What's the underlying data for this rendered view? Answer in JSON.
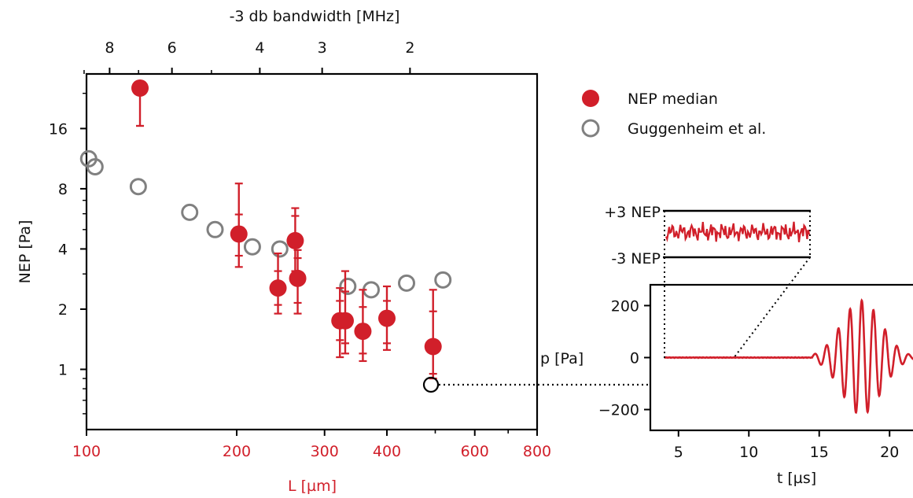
{
  "chart_data": [
    {
      "type": "scatter",
      "xlabel": "L [µm]",
      "ylabel": "NEP [Pa]",
      "top_xlabel": "-3 db bandwidth [MHz]",
      "x_scale": "log",
      "y_scale": "log",
      "xlim": [
        100,
        800
      ],
      "ylim": [
        0.5,
        30
      ],
      "x_ticks": [
        "100",
        "200",
        "300",
        "400",
        "600",
        "800"
      ],
      "y_ticks": [
        "1",
        "2",
        "4",
        "8",
        "16"
      ],
      "top_ticks": [
        "8",
        "6",
        "4",
        "3",
        "2"
      ],
      "legend_position": "right",
      "series": [
        {
          "name": "NEP median",
          "color": "#d11f2a",
          "marker": "filled-circle",
          "points": [
            {
              "x": 128,
              "y": 25.5,
              "y_outer": [
                16.5,
                25.5
              ],
              "y_inner": [
                16.5,
                25.5
              ]
            },
            {
              "x": 202,
              "y": 4.75,
              "y_outer": [
                3.25,
                8.5
              ],
              "y_inner": [
                3.7,
                5.95
              ]
            },
            {
              "x": 242,
              "y": 2.55,
              "y_outer": [
                1.9,
                3.8
              ],
              "y_inner": [
                2.1,
                3.1
              ]
            },
            {
              "x": 262,
              "y": 4.4,
              "y_outer": [
                2.85,
                6.4
              ],
              "y_inner": [
                3.1,
                5.85
              ]
            },
            {
              "x": 265,
              "y": 2.85,
              "y_outer": [
                1.9,
                3.95
              ],
              "y_inner": [
                2.15,
                3.6
              ]
            },
            {
              "x": 322,
              "y": 1.75,
              "y_outer": [
                1.15,
                2.55
              ],
              "y_inner": [
                1.4,
                2.2
              ]
            },
            {
              "x": 330,
              "y": 1.75,
              "y_outer": [
                1.2,
                3.1
              ],
              "y_inner": [
                1.35,
                2.45
              ]
            },
            {
              "x": 358,
              "y": 1.55,
              "y_outer": [
                1.1,
                2.5
              ],
              "y_inner": [
                1.2,
                2.05
              ]
            },
            {
              "x": 400,
              "y": 1.8,
              "y_outer": [
                1.25,
                2.6
              ],
              "y_inner": [
                1.35,
                2.2
              ]
            },
            {
              "x": 495,
              "y": 1.3,
              "y_outer": [
                0.9,
                2.5
              ],
              "y_inner": [
                0.95,
                1.95
              ]
            }
          ]
        },
        {
          "name": "Guggenheim et al.",
          "color": "#808080",
          "marker": "open-circle",
          "points": [
            {
              "x": 101,
              "y": 11.3
            },
            {
              "x": 104,
              "y": 10.3
            },
            {
              "x": 127,
              "y": 8.2
            },
            {
              "x": 161,
              "y": 6.1
            },
            {
              "x": 181,
              "y": 5.0
            },
            {
              "x": 215,
              "y": 4.1
            },
            {
              "x": 244,
              "y": 4.0
            },
            {
              "x": 334,
              "y": 2.6
            },
            {
              "x": 372,
              "y": 2.5
            },
            {
              "x": 438,
              "y": 2.7
            },
            {
              "x": 518,
              "y": 2.8
            }
          ]
        }
      ],
      "highlight": {
        "x": 495,
        "y": 0.75
      }
    },
    {
      "type": "line",
      "xlabel": "t [µs]",
      "ylabel": "p [Pa]",
      "xlim": [
        3,
        22
      ],
      "ylim": [
        -280,
        280
      ],
      "x_ticks": [
        "5",
        "10",
        "15",
        "20"
      ],
      "y_ticks": [
        "200",
        "0",
        "−200"
      ],
      "series": [
        {
          "name": "",
          "color": "#d11f2a"
        }
      ],
      "inset": {
        "upper_label": "+3 NEP",
        "lower_label": "-3 NEP",
        "x_range": [
          4,
          9
        ]
      }
    }
  ]
}
